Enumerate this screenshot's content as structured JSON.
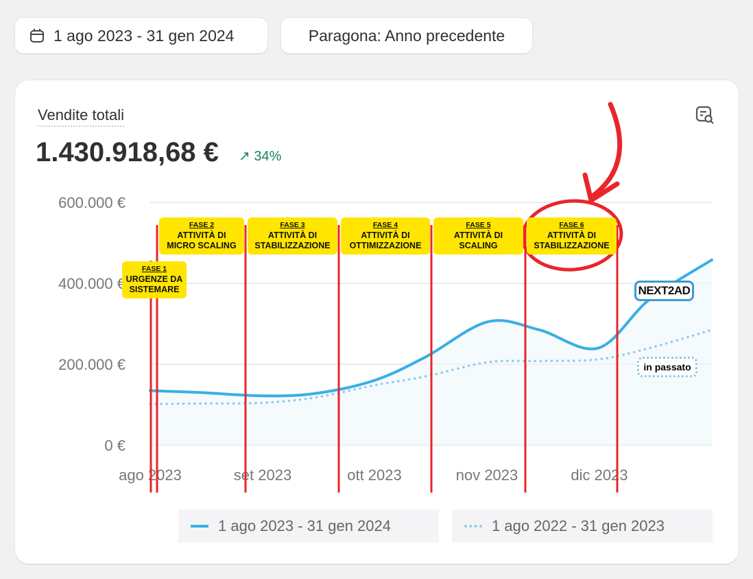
{
  "toolbar": {
    "date_range": "1 ago 2023 - 31 gen 2024",
    "compare": "Paragona: Anno precedente",
    "date_icon": "calendar-icon"
  },
  "card": {
    "title": "Vendite totali",
    "total": "1.430.918,68 €",
    "change": "34%",
    "change_icon": "arrow-up-right-icon",
    "change_color": "#1a8458",
    "action_icon": "report-search-icon"
  },
  "annotations": {
    "phases": [
      {
        "number": "FASE 1",
        "line1": "URGENZE DA",
        "line2": "SISTEMARE"
      },
      {
        "number": "FASE 2",
        "line1": "ATTIVITÀ DI",
        "line2": "MICRO SCALING"
      },
      {
        "number": "FASE 3",
        "line1": "ATTIVITÀ DI",
        "line2": "STABILIZZAZIONE"
      },
      {
        "number": "FASE 4",
        "line1": "ATTIVITÀ DI",
        "line2": "OTTIMIZZAZIONE"
      },
      {
        "number": "FASE 5",
        "line1": "ATTIVITÀ DI",
        "line2": "SCALING"
      },
      {
        "number": "FASE 6",
        "line1": "ATTIVITÀ DI",
        "line2": "STABILIZZAZIONE"
      }
    ],
    "logo": "NEXT2AD",
    "past_label": "in passato",
    "highlight_color": "#e8262b",
    "phase_color": "#ffe500"
  },
  "chart_data": {
    "type": "line",
    "ylim": [
      0,
      600000
    ],
    "yticks": [
      0,
      200000,
      400000,
      600000
    ],
    "ytick_labels": [
      "0 €",
      "200.000 €",
      "400.000 €",
      "600.000 €"
    ],
    "xtick_labels": [
      "ago 2023",
      "set 2023",
      "ott 2023",
      "nov 2023",
      "dic 2023"
    ],
    "xticks": [
      "2023-08-01",
      "2023-09-01",
      "2023-10-01",
      "2023-11-01",
      "2023-12-01"
    ],
    "grid": true,
    "legend_placement": "bottom",
    "x": [
      "2023-08-01",
      "2023-08-15",
      "2023-09-01",
      "2023-09-15",
      "2023-10-01",
      "2023-10-15",
      "2023-11-01",
      "2023-11-15",
      "2023-12-01",
      "2023-12-15",
      "2024-01-01"
    ],
    "series": [
      {
        "name": "1 ago 2023 - 31 gen 2024",
        "color": "#3aafe3",
        "style": "solid",
        "values": [
          135000,
          130000,
          122000,
          128000,
          160000,
          218000,
          305000,
          285000,
          240000,
          360000,
          458000
        ]
      },
      {
        "name": "1 ago 2022 - 31 gen 2023",
        "color": "#8fcbe6",
        "style": "dotted",
        "values": [
          102000,
          103000,
          105000,
          118000,
          148000,
          170000,
          205000,
          208000,
          212000,
          240000,
          285000
        ]
      }
    ]
  }
}
